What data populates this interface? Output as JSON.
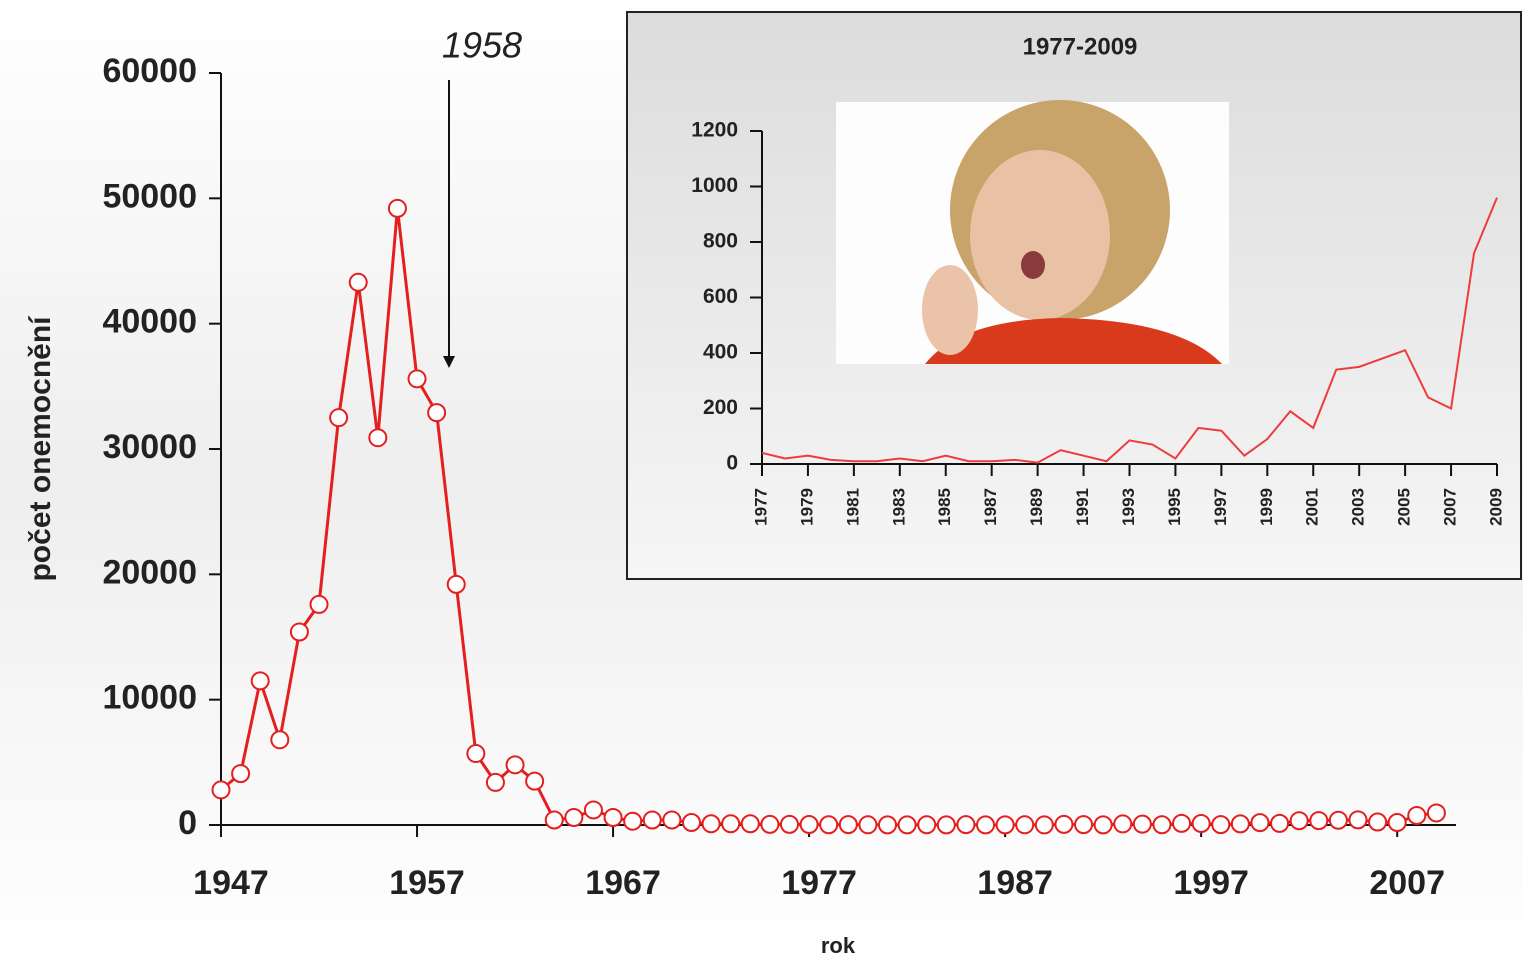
{
  "chart_data": [
    {
      "type": "line",
      "annotation": "1958",
      "ylabel": "počet onemocnění",
      "xlabel": "rok",
      "x": [
        1947,
        1948,
        1949,
        1950,
        1951,
        1952,
        1953,
        1954,
        1955,
        1956,
        1957,
        1958,
        1959,
        1960,
        1961,
        1962,
        1963,
        1964,
        1965,
        1966,
        1967,
        1968,
        1969,
        1970,
        1971,
        1972,
        1973,
        1974,
        1975,
        1976,
        1977,
        1978,
        1979,
        1980,
        1981,
        1982,
        1983,
        1984,
        1985,
        1986,
        1987,
        1988,
        1989,
        1990,
        1991,
        1992,
        1993,
        1994,
        1995,
        1996,
        1997,
        1998,
        1999,
        2000,
        2001,
        2002,
        2003,
        2004,
        2005,
        2006,
        2007,
        2008,
        2009
      ],
      "values": [
        2800,
        4100,
        11500,
        6800,
        15400,
        17600,
        32500,
        43300,
        30900,
        49200,
        35600,
        32900,
        19200,
        5700,
        3400,
        4800,
        3500,
        400,
        600,
        1200,
        600,
        300,
        400,
        400,
        200,
        100,
        100,
        100,
        50,
        50,
        40,
        20,
        30,
        15,
        10,
        10,
        20,
        10,
        30,
        10,
        10,
        15,
        5,
        50,
        30,
        10,
        85,
        70,
        20,
        130,
        120,
        30,
        90,
        190,
        130,
        340,
        350,
        380,
        410,
        240,
        200,
        760,
        960
      ],
      "color": "#e3201f",
      "markers": true,
      "xlim": [
        1947,
        2010
      ],
      "xticks": [
        1947,
        1957,
        1967,
        1977,
        1987,
        1997,
        2007
      ],
      "ylim": [
        0,
        60000
      ],
      "yticks": [
        0,
        10000,
        20000,
        30000,
        40000,
        50000,
        60000
      ]
    },
    {
      "type": "line",
      "title": "1977-2009",
      "x": [
        1977,
        1978,
        1979,
        1980,
        1981,
        1982,
        1983,
        1984,
        1985,
        1986,
        1987,
        1988,
        1989,
        1990,
        1991,
        1992,
        1993,
        1994,
        1995,
        1996,
        1997,
        1998,
        1999,
        2000,
        2001,
        2002,
        2003,
        2004,
        2005,
        2006,
        2007,
        2008,
        2009
      ],
      "values": [
        40,
        20,
        30,
        15,
        10,
        10,
        20,
        10,
        30,
        10,
        10,
        15,
        5,
        50,
        30,
        10,
        85,
        70,
        20,
        130,
        120,
        30,
        90,
        190,
        130,
        340,
        350,
        380,
        410,
        240,
        200,
        760,
        960
      ],
      "color": "#ee3b3b",
      "markers": false,
      "xlim": [
        1977,
        2009
      ],
      "xticks": [
        1977,
        1979,
        1981,
        1983,
        1985,
        1987,
        1989,
        1991,
        1993,
        1995,
        1997,
        1999,
        2001,
        2003,
        2005,
        2007,
        2009
      ],
      "ylim": [
        0,
        1200
      ],
      "yticks": [
        0,
        200,
        400,
        600,
        800,
        1000,
        1200
      ]
    }
  ]
}
